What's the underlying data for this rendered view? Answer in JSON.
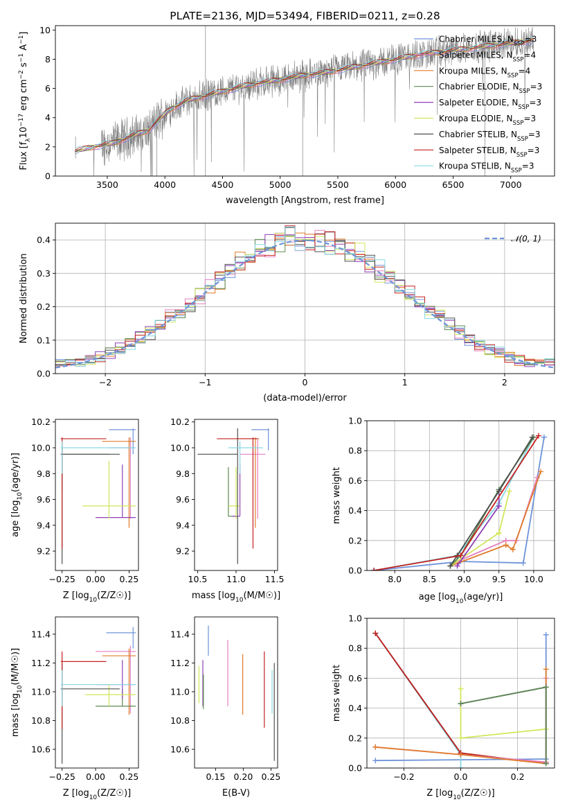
{
  "chart_data": [
    {
      "type": "line",
      "title": "PLATE=2136, MJD=53494, FIBERID=0211, z=0.28",
      "xlabel": "wavelength [Angstrom, rest frame]",
      "ylabel_parts": [
        "Flux [f",
        "λ",
        "10",
        "−17",
        " erg cm",
        "−2",
        " s",
        "−1",
        " A",
        "−1",
        "]"
      ],
      "xlim": [
        3050,
        7380
      ],
      "ylim": [
        0,
        10.3
      ],
      "xticks": [
        3500,
        4000,
        4500,
        5000,
        5500,
        6000,
        6500,
        7000
      ],
      "yticks": [
        0,
        2,
        4,
        6,
        8,
        10
      ],
      "spectrum_anchors": {
        "x": [
          3220,
          3350,
          3450,
          3550,
          3650,
          3750,
          3850,
          3950,
          4050,
          4200,
          4350,
          4500,
          4650,
          4800,
          5000,
          5200,
          5400,
          5600,
          5800,
          6000,
          6200,
          6400,
          6600,
          6800,
          7000,
          7200
        ],
        "y": [
          1.7,
          1.95,
          2.1,
          2.25,
          2.55,
          2.85,
          3.1,
          3.9,
          4.6,
          5.2,
          5.5,
          5.8,
          6.1,
          6.35,
          6.6,
          6.9,
          7.1,
          7.4,
          7.7,
          8.0,
          8.3,
          8.5,
          8.7,
          8.9,
          9.1,
          9.3
        ]
      },
      "legend": {
        "placement": "upper right",
        "entries": [
          {
            "pre": "Chabrier MILES, N",
            "sub": "SSP",
            "post": "=3",
            "color": "#6e93d9"
          },
          {
            "pre": "Salpeter MILES, N",
            "sub": "SSP",
            "post": "=4",
            "color": "#e37fbf"
          },
          {
            "pre": "Kroupa MILES, N",
            "sub": "SSP",
            "post": "=4",
            "color": "#e07b2a"
          },
          {
            "pre": "Chabrier ELODIE, N",
            "sub": "SSP",
            "post": "=3",
            "color": "#5b8a4f"
          },
          {
            "pre": "Salpeter ELODIE, N",
            "sub": "SSP",
            "post": "=3",
            "color": "#8e3fb5"
          },
          {
            "pre": "Kroupa ELODIE, N",
            "sub": "SSP",
            "post": "=3",
            "color": "#d2e65a"
          },
          {
            "pre": "Chabrier STELIB, N",
            "sub": "SSP",
            "post": "=3",
            "color": "#4d4d4d"
          },
          {
            "pre": "Salpeter STELIB, N",
            "sub": "SSP",
            "post": "=3",
            "color": "#c4201f"
          },
          {
            "pre": "Kroupa STELIB, N",
            "sub": "SSP",
            "post": "=3",
            "color": "#86d7e3"
          }
        ]
      }
    },
    {
      "type": "line",
      "xlabel": "(data-model)/error",
      "ylabel": "Normed distribution",
      "xlim": [
        -2.5,
        2.5
      ],
      "ylim": [
        0,
        0.45
      ],
      "xticks": [
        -2,
        -1,
        0,
        1,
        2
      ],
      "yticks": [
        0.0,
        0.1,
        0.2,
        0.3,
        0.4
      ],
      "grid": true,
      "reference_curve": {
        "label": "𝒩(0, 1)",
        "color": "#6e93d9",
        "style": "dashed"
      },
      "histogram_bins_from": -2.5,
      "histogram_bin_width": 0.1,
      "series_colors": [
        "#6e93d9",
        "#e37fbf",
        "#e07b2a",
        "#5b8a4f",
        "#8e3fb5",
        "#d2e65a",
        "#4d4d4d",
        "#c4201f",
        "#86d7e3"
      ]
    },
    {
      "type": "scatter",
      "xlabel_pre": "Z [log",
      "xlabel_sub": "10",
      "xlabel_post": "(Z/Z☉)]",
      "ylabel_pre": "age  [log",
      "ylabel_sub": "10",
      "ylabel_post": "(age/yr)]",
      "xlim": [
        -0.3,
        0.32
      ],
      "ylim": [
        9.05,
        10.22
      ],
      "xticks": [
        -0.25,
        0.0,
        0.25
      ],
      "yticks": [
        9.2,
        9.4,
        9.6,
        9.8,
        10.0,
        10.2
      ],
      "points": [
        {
          "x": 0.28,
          "y": 10.14,
          "x0": 0.1,
          "x1": 0.3,
          "y0": 9.95,
          "y1": 10.15,
          "color": "#6e93d9"
        },
        {
          "x": 0.26,
          "y": 10.0,
          "x0": 0.1,
          "x1": 0.29,
          "y0": 9.45,
          "y1": 10.08,
          "color": "#e37fbf"
        },
        {
          "x": 0.25,
          "y": 10.05,
          "x0": 0.05,
          "x1": 0.3,
          "y0": 9.38,
          "y1": 10.08,
          "color": "#e07b2a"
        },
        {
          "x": -0.25,
          "y": 9.95,
          "x0": -0.26,
          "x1": 0.1,
          "y0": 9.65,
          "y1": 10.05,
          "color": "#5b8a4f"
        },
        {
          "x": 0.2,
          "y": 9.46,
          "x0": 0.0,
          "x1": 0.3,
          "y0": 9.46,
          "y1": 9.87,
          "color": "#8e3fb5"
        },
        {
          "x": 0.1,
          "y": 9.55,
          "x0": -0.1,
          "x1": 0.3,
          "y0": 9.45,
          "y1": 9.9,
          "color": "#d2e65a"
        },
        {
          "x": -0.25,
          "y": 9.95,
          "x0": -0.26,
          "x1": 0.18,
          "y0": 9.1,
          "y1": 10.0,
          "color": "#4d4d4d"
        },
        {
          "x": -0.25,
          "y": 10.07,
          "x0": -0.26,
          "x1": 0.08,
          "y0": 9.22,
          "y1": 10.08,
          "color": "#c4201f"
        },
        {
          "x": -0.25,
          "y": 10.0,
          "x0": -0.26,
          "x1": 0.3,
          "y0": 9.8,
          "y1": 10.05,
          "color": "#86d7e3"
        }
      ]
    },
    {
      "type": "scatter",
      "xlabel_pre": "mass [log",
      "xlabel_sub": "10",
      "xlabel_post": "(M/M☉)]",
      "xlim": [
        10.46,
        11.54
      ],
      "ylim": [
        9.05,
        10.22
      ],
      "xticks": [
        10.5,
        11.0,
        11.5
      ],
      "yticks": [
        9.2,
        9.4,
        9.6,
        9.8,
        10.0,
        10.2
      ],
      "points": [
        {
          "x": 11.42,
          "y": 10.14,
          "x0": 11.2,
          "x1": 11.43,
          "y0": 9.98,
          "y1": 10.15,
          "color": "#6e93d9"
        },
        {
          "x": 11.28,
          "y": 9.95,
          "x0": 11.05,
          "x1": 11.38,
          "y0": 9.45,
          "y1": 10.07,
          "color": "#e37fbf"
        },
        {
          "x": 11.25,
          "y": 10.07,
          "x0": 11.0,
          "x1": 11.3,
          "y0": 9.38,
          "y1": 10.08,
          "color": "#e07b2a"
        },
        {
          "x": 10.9,
          "y": 9.47,
          "x0": 10.9,
          "x1": 11.0,
          "y0": 9.47,
          "y1": 9.85,
          "color": "#5b8a4f"
        },
        {
          "x": 11.05,
          "y": 9.47,
          "x0": 10.95,
          "x1": 11.05,
          "y0": 9.47,
          "y1": 9.88,
          "color": "#8e3fb5"
        },
        {
          "x": 11.0,
          "y": 9.55,
          "x0": 10.9,
          "x1": 11.05,
          "y0": 9.45,
          "y1": 9.85,
          "color": "#d2e65a"
        },
        {
          "x": 11.02,
          "y": 9.95,
          "x0": 10.5,
          "x1": 11.02,
          "y0": 9.1,
          "y1": 10.15,
          "color": "#4d4d4d"
        },
        {
          "x": 11.22,
          "y": 10.07,
          "x0": 10.75,
          "x1": 11.28,
          "y0": 9.22,
          "y1": 10.08,
          "color": "#c4201f"
        },
        {
          "x": 11.05,
          "y": 10.0,
          "x0": 10.9,
          "x1": 11.35,
          "y0": 9.8,
          "y1": 10.05,
          "color": "#86d7e3"
        }
      ]
    },
    {
      "type": "line",
      "xlabel_pre": "age  [log",
      "xlabel_sub": "10",
      "xlabel_post": "(age/yr)]",
      "ylabel": "mass weight",
      "xlim": [
        7.6,
        10.3
      ],
      "ylim": [
        0,
        1.0
      ],
      "xticks": [
        8.0,
        8.5,
        9.0,
        9.5,
        10.0
      ],
      "yticks": [
        0.0,
        0.2,
        0.4,
        0.6,
        0.8,
        1.0
      ],
      "grid": true,
      "series": [
        {
          "color": "#86d7e3",
          "x": [
            7.7,
            8.9,
            9.5,
            10.0
          ],
          "y": [
            0.0,
            0.1,
            0.45,
            0.89
          ]
        },
        {
          "color": "#6e93d9",
          "x": [
            7.7,
            8.95,
            9.85,
            10.15
          ],
          "y": [
            0.0,
            0.06,
            0.05,
            0.89
          ]
        },
        {
          "color": "#e37fbf",
          "x": [
            8.9,
            9.6,
            9.75,
            10.05
          ],
          "y": [
            0.06,
            0.2,
            0.2,
            0.62
          ]
        },
        {
          "color": "#e07b2a",
          "x": [
            8.8,
            9.6,
            9.7,
            10.1
          ],
          "y": [
            0.03,
            0.17,
            0.14,
            0.66
          ]
        },
        {
          "color": "#d2e65a",
          "x": [
            8.8,
            9.5,
            9.5,
            9.65
          ],
          "y": [
            0.03,
            0.25,
            0.25,
            0.53
          ]
        },
        {
          "color": "#8e3fb5",
          "x": [
            8.9,
            9.5,
            9.5
          ],
          "y": [
            0.03,
            0.43,
            0.54
          ]
        },
        {
          "color": "#5b8a4f",
          "x": [
            8.8,
            8.95,
            9.5,
            10.0
          ],
          "y": [
            0.03,
            0.1,
            0.54,
            0.89
          ]
        },
        {
          "color": "#4d4d4d",
          "x": [
            8.8,
            8.9,
            9.5,
            9.98
          ],
          "y": [
            0.03,
            0.1,
            0.53,
            0.89
          ]
        },
        {
          "color": "#c4201f",
          "x": [
            7.7,
            8.95,
            10.07
          ],
          "y": [
            0.0,
            0.1,
            0.9
          ]
        }
      ]
    },
    {
      "type": "scatter",
      "xlabel_pre": "Z [log",
      "xlabel_sub": "10",
      "xlabel_post": "(Z/Z☉)]",
      "ylabel_pre": "mass [log",
      "ylabel_sub": "10",
      "ylabel_post": "(M/M☉)]",
      "xlim": [
        -0.3,
        0.32
      ],
      "ylim": [
        10.47,
        11.52
      ],
      "xticks": [
        -0.25,
        0.0,
        0.25
      ],
      "yticks": [
        10.6,
        10.8,
        11.0,
        11.2,
        11.4
      ],
      "points": [
        {
          "x": 0.28,
          "y": 11.41,
          "x0": 0.08,
          "x1": 0.3,
          "y0": 11.3,
          "y1": 11.45,
          "color": "#6e93d9"
        },
        {
          "x": 0.26,
          "y": 11.28,
          "x0": 0.0,
          "x1": 0.3,
          "y0": 10.85,
          "y1": 11.32,
          "color": "#e37fbf"
        },
        {
          "x": 0.25,
          "y": 11.25,
          "x0": 0.05,
          "x1": 0.3,
          "y0": 10.84,
          "y1": 11.3,
          "color": "#e07b2a"
        },
        {
          "x": 0.2,
          "y": 10.9,
          "x0": 0.0,
          "x1": 0.3,
          "y0": 10.9,
          "y1": 11.02,
          "color": "#5b8a4f"
        },
        {
          "x": 0.2,
          "y": 11.05,
          "x0": 0.0,
          "x1": 0.3,
          "y0": 10.95,
          "y1": 11.22,
          "color": "#8e3fb5"
        },
        {
          "x": 0.1,
          "y": 10.98,
          "x0": -0.08,
          "x1": 0.3,
          "y0": 10.9,
          "y1": 11.05,
          "color": "#d2e65a"
        },
        {
          "x": -0.25,
          "y": 11.02,
          "x0": -0.26,
          "x1": 0.18,
          "y0": 10.5,
          "y1": 11.2,
          "color": "#4d4d4d"
        },
        {
          "x": -0.25,
          "y": 11.21,
          "x0": -0.26,
          "x1": 0.08,
          "y0": 10.74,
          "y1": 11.28,
          "color": "#c4201f"
        },
        {
          "x": -0.25,
          "y": 11.05,
          "x0": -0.26,
          "x1": 0.3,
          "y0": 10.9,
          "y1": 11.15,
          "color": "#86d7e3"
        }
      ]
    },
    {
      "type": "scatter",
      "xlabel": "E(B-V)",
      "xlim": [
        0.112,
        0.262
      ],
      "ylim": [
        10.47,
        11.52
      ],
      "xticks": [
        0.15,
        0.2,
        0.25
      ],
      "yticks": [
        10.6,
        10.8,
        11.0,
        11.2,
        11.4
      ],
      "errorbars": [
        {
          "x": 0.12,
          "y0": 10.92,
          "y1": 11.18,
          "color": "#d2e65a"
        },
        {
          "x": 0.127,
          "y0": 10.9,
          "y1": 11.22,
          "color": "#8e3fb5"
        },
        {
          "x": 0.128,
          "y0": 10.88,
          "y1": 11.12,
          "color": "#5b8a4f"
        },
        {
          "x": 0.137,
          "y0": 11.25,
          "y1": 11.46,
          "color": "#6e93d9"
        },
        {
          "x": 0.172,
          "y0": 10.9,
          "y1": 11.36,
          "color": "#e37fbf"
        },
        {
          "x": 0.199,
          "y0": 10.84,
          "y1": 11.26,
          "color": "#e07b2a"
        },
        {
          "x": 0.238,
          "y0": 10.75,
          "y1": 11.28,
          "color": "#c4201f"
        },
        {
          "x": 0.252,
          "y0": 10.85,
          "y1": 11.15,
          "color": "#86d7e3"
        },
        {
          "x": 0.256,
          "y0": 10.52,
          "y1": 11.2,
          "color": "#4d4d4d"
        }
      ]
    },
    {
      "type": "line",
      "xlabel_pre": "Z [log",
      "xlabel_sub": "10",
      "xlabel_post": "(Z/Z☉)]",
      "ylabel": "mass weight",
      "xlim": [
        -0.33,
        0.33
      ],
      "ylim": [
        0,
        1.0
      ],
      "xticks": [
        -0.2,
        0.0,
        0.2
      ],
      "yticks": [
        0.0,
        0.2,
        0.4,
        0.6,
        0.8,
        1.0
      ],
      "grid": true,
      "series": [
        {
          "color": "#6e93d9",
          "x": [
            -0.3,
            0.3,
            0.3
          ],
          "y": [
            0.05,
            0.06,
            0.89
          ]
        },
        {
          "color": "#86d7e3",
          "x": [
            -0.3,
            0.0,
            0.0
          ],
          "y": [
            0.9,
            0.09,
            0.0
          ]
        },
        {
          "color": "#4d4d4d",
          "x": [
            -0.3,
            0.0,
            0.3
          ],
          "y": [
            0.9,
            0.1,
            0.03
          ]
        },
        {
          "color": "#c4201f",
          "x": [
            -0.3,
            0.0,
            0.3
          ],
          "y": [
            0.9,
            0.1,
            0.03
          ]
        },
        {
          "color": "#e37fbf",
          "x": [
            -0.3,
            0.0,
            0.3,
            0.3
          ],
          "y": [
            0.14,
            0.09,
            0.04,
            0.6
          ]
        },
        {
          "color": "#e07b2a",
          "x": [
            -0.3,
            0.0,
            0.3,
            0.3
          ],
          "y": [
            0.14,
            0.09,
            0.03,
            0.66
          ]
        },
        {
          "color": "#d2e65a",
          "x": [
            0.0,
            0.0,
            0.3
          ],
          "y": [
            0.53,
            0.2,
            0.26
          ]
        },
        {
          "color": "#8e3fb5",
          "x": [
            0.0,
            0.3,
            0.3
          ],
          "y": [
            0.43,
            0.54,
            0.03
          ]
        },
        {
          "color": "#5b8a4f",
          "x": [
            0.0,
            0.3,
            0.3
          ],
          "y": [
            0.43,
            0.54,
            0.03
          ]
        }
      ]
    }
  ]
}
